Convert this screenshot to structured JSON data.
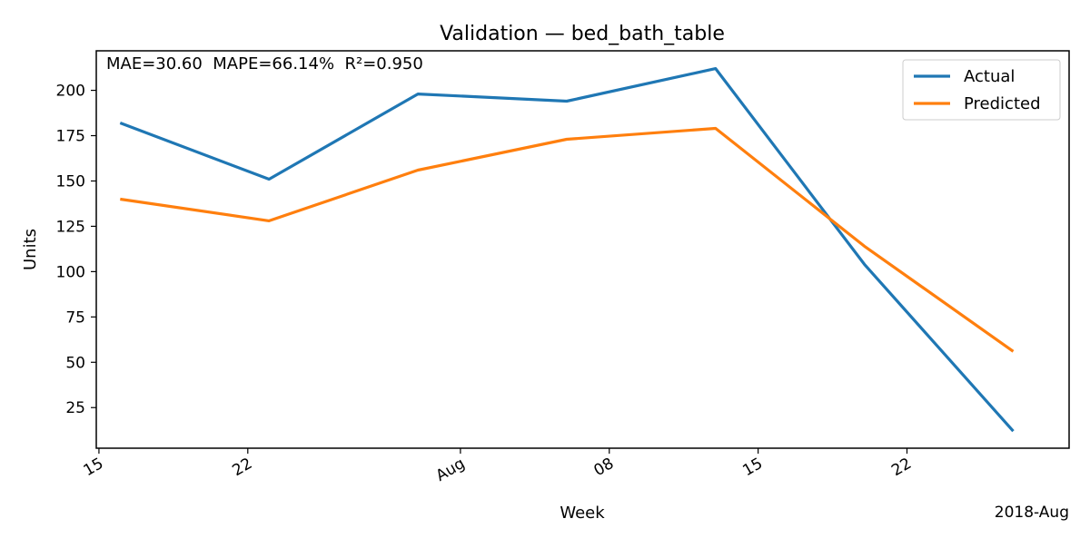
{
  "chart_data": {
    "type": "line",
    "title": "Validation — bed_bath_table",
    "xlabel": "Week",
    "ylabel": "Units",
    "x_offset_label": "2018-Aug",
    "annotation": "MAE=30.60  MAPE=66.14%  R²=0.950",
    "x": [
      "2018-07-16",
      "2018-07-23",
      "2018-07-30",
      "2018-08-06",
      "2018-08-13",
      "2018-08-20",
      "2018-08-27"
    ],
    "xlim": [
      "2018-07-14T21:00",
      "2018-08-29T15:00"
    ],
    "ylim": [
      2.6,
      221.8
    ],
    "yticks": [
      25,
      50,
      75,
      100,
      125,
      150,
      175,
      200
    ],
    "xticks": [
      {
        "date": "2018-07-15",
        "label": "15"
      },
      {
        "date": "2018-07-22",
        "label": "22"
      },
      {
        "date": "2018-08-01",
        "label": "Aug"
      },
      {
        "date": "2018-08-08",
        "label": "08"
      },
      {
        "date": "2018-08-15",
        "label": "15"
      },
      {
        "date": "2018-08-22",
        "label": "22"
      }
    ],
    "series": [
      {
        "name": "Actual",
        "color": "#1f77b4",
        "values": [
          182,
          151,
          198,
          194,
          212,
          104,
          12
        ]
      },
      {
        "name": "Predicted",
        "color": "#ff7f0e",
        "values": [
          140,
          128,
          156,
          173,
          179,
          114,
          56
        ]
      }
    ],
    "legend_position": "top-right",
    "grid": false
  }
}
